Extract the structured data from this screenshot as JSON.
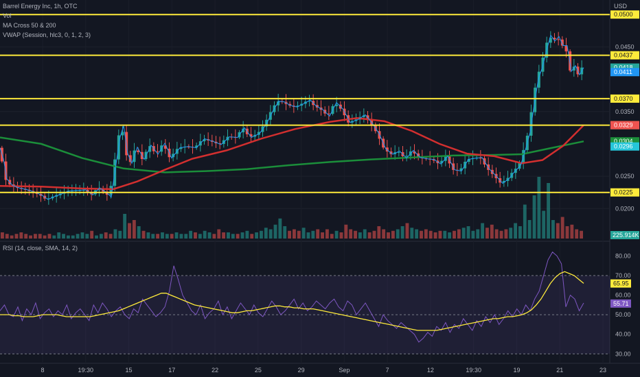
{
  "header": {
    "symbol_line": "Barrel Energy Inc, 1h, OTC",
    "vol_label": "Vol",
    "ma_label": "MA Cross 50 & 200",
    "vwap_label": "VWAP (Session, hlc3, 0, 1, 2, 3)",
    "currency": "USD"
  },
  "rsi_header": "RSI (14, close, SMA, 14, 2)",
  "colors": {
    "background": "#131722",
    "up": "#26a69a",
    "down": "#ef5350",
    "level_line": "#ffeb3b",
    "ma_fast": "#d32f2f",
    "ma_slow": "#1b8e3a",
    "vwap": "#2196f3",
    "rsi": "#7e57c2",
    "rsi_ma": "#ffeb3b"
  },
  "chart_data": [
    {
      "type": "candlestick",
      "title": "Barrel Energy Inc, 1h, OTC",
      "ylabel": "USD",
      "ylim": [
        0.0177,
        0.0514
      ],
      "y_ticks": [
        "0.0450",
        "0.0350",
        "0.0250",
        "0.0200"
      ],
      "x_ticks": [
        "8",
        "19:30",
        "15",
        "17",
        "22",
        "25",
        "29",
        "Sep",
        "7",
        "12",
        "19:30",
        "19",
        "21",
        "23"
      ],
      "horizontal_levels": [
        "0.0500",
        "0.0437",
        "0.0370",
        "0.0329",
        "0.0225"
      ],
      "price_labels": [
        {
          "text": "0.0418",
          "value": 0.0418,
          "color": "#26a69a"
        },
        {
          "text": "0.0411",
          "value": 0.0411,
          "color": "#2196f3"
        },
        {
          "text": "0.0329",
          "value": 0.0329,
          "color": "#ef5350"
        },
        {
          "text": "0.0304",
          "value": 0.0304,
          "color": "#1b8e3a"
        },
        {
          "text": "0.0296",
          "value": 0.0296,
          "color": "#26c6da"
        }
      ],
      "close_path": [
        [
          0,
          0.0294
        ],
        [
          5,
          0.0277
        ],
        [
          10,
          0.0246
        ],
        [
          18,
          0.0236
        ],
        [
          28,
          0.0232
        ],
        [
          40,
          0.0229
        ],
        [
          52,
          0.0225
        ],
        [
          62,
          0.022
        ],
        [
          70,
          0.0214
        ],
        [
          78,
          0.0218
        ],
        [
          88,
          0.0222
        ],
        [
          100,
          0.0227
        ],
        [
          112,
          0.0228
        ],
        [
          125,
          0.0229
        ],
        [
          135,
          0.0221
        ],
        [
          145,
          0.0232
        ],
        [
          155,
          0.0225
        ],
        [
          162,
          0.0218
        ],
        [
          168,
          0.0262
        ],
        [
          175,
          0.0311
        ],
        [
          180,
          0.0328
        ],
        [
          186,
          0.0285
        ],
        [
          192,
          0.027
        ],
        [
          200,
          0.0295
        ],
        [
          210,
          0.0276
        ],
        [
          220,
          0.0298
        ],
        [
          230,
          0.0284
        ],
        [
          240,
          0.0301
        ],
        [
          250,
          0.0278
        ],
        [
          262,
          0.0294
        ],
        [
          274,
          0.0296
        ],
        [
          286,
          0.0294
        ],
        [
          298,
          0.0308
        ],
        [
          310,
          0.0304
        ],
        [
          322,
          0.0299
        ],
        [
          334,
          0.0311
        ],
        [
          346,
          0.031
        ],
        [
          356,
          0.0325
        ],
        [
          366,
          0.031
        ],
        [
          378,
          0.0316
        ],
        [
          388,
          0.0331
        ],
        [
          398,
          0.0352
        ],
        [
          406,
          0.0366
        ],
        [
          414,
          0.0365
        ],
        [
          422,
          0.036
        ],
        [
          432,
          0.0357
        ],
        [
          442,
          0.0362
        ],
        [
          452,
          0.0368
        ],
        [
          460,
          0.0359
        ],
        [
          470,
          0.0353
        ],
        [
          480,
          0.0343
        ],
        [
          490,
          0.0364
        ],
        [
          500,
          0.0353
        ],
        [
          510,
          0.0333
        ],
        [
          522,
          0.0338
        ],
        [
          532,
          0.0345
        ],
        [
          542,
          0.0332
        ],
        [
          552,
          0.0316
        ],
        [
          562,
          0.0292
        ],
        [
          572,
          0.0284
        ],
        [
          582,
          0.0289
        ],
        [
          592,
          0.0278
        ],
        [
          602,
          0.029
        ],
        [
          612,
          0.0279
        ],
        [
          622,
          0.0277
        ],
        [
          632,
          0.0276
        ],
        [
          642,
          0.0269
        ],
        [
          652,
          0.0281
        ],
        [
          662,
          0.026
        ],
        [
          672,
          0.0258
        ],
        [
          682,
          0.0276
        ],
        [
          692,
          0.0278
        ],
        [
          702,
          0.0279
        ],
        [
          712,
          0.0262
        ],
        [
          722,
          0.0251
        ],
        [
          732,
          0.0239
        ],
        [
          742,
          0.0247
        ],
        [
          750,
          0.0258
        ],
        [
          758,
          0.0266
        ],
        [
          766,
          0.0294
        ],
        [
          772,
          0.0318
        ],
        [
          778,
          0.0361
        ],
        [
          784,
          0.04
        ],
        [
          790,
          0.0419
        ],
        [
          796,
          0.0445
        ],
        [
          802,
          0.0468
        ],
        [
          808,
          0.0459
        ],
        [
          814,
          0.0466
        ],
        [
          820,
          0.0452
        ],
        [
          826,
          0.0452
        ],
        [
          832,
          0.0412
        ],
        [
          838,
          0.0421
        ],
        [
          844,
          0.0407
        ],
        [
          850,
          0.0418
        ]
      ],
      "ma_fast_path": [
        [
          0,
          0.0235
        ],
        [
          60,
          0.0234
        ],
        [
          120,
          0.0231
        ],
        [
          165,
          0.023
        ],
        [
          200,
          0.0242
        ],
        [
          240,
          0.026
        ],
        [
          280,
          0.0277
        ],
        [
          330,
          0.029
        ],
        [
          380,
          0.0308
        ],
        [
          430,
          0.0323
        ],
        [
          480,
          0.0334
        ],
        [
          520,
          0.034
        ],
        [
          560,
          0.0335
        ],
        [
          600,
          0.032
        ],
        [
          640,
          0.03
        ],
        [
          680,
          0.0285
        ],
        [
          720,
          0.0281
        ],
        [
          760,
          0.027
        ],
        [
          790,
          0.0275
        ],
        [
          820,
          0.0297
        ],
        [
          850,
          0.0329
        ]
      ],
      "ma_slow_path": [
        [
          0,
          0.031
        ],
        [
          60,
          0.03
        ],
        [
          120,
          0.0278
        ],
        [
          180,
          0.0262
        ],
        [
          240,
          0.0256
        ],
        [
          300,
          0.0258
        ],
        [
          360,
          0.0261
        ],
        [
          420,
          0.0267
        ],
        [
          480,
          0.0272
        ],
        [
          540,
          0.0276
        ],
        [
          600,
          0.0279
        ],
        [
          660,
          0.0282
        ],
        [
          720,
          0.0283
        ],
        [
          760,
          0.0284
        ],
        [
          800,
          0.0293
        ],
        [
          850,
          0.0304
        ]
      ],
      "volume_peak": "225.914K",
      "volume_bars": [
        4,
        3,
        2,
        3,
        4,
        3,
        2,
        3,
        3,
        2,
        3,
        2,
        4,
        3,
        2,
        2,
        3,
        4,
        3,
        5,
        2,
        3,
        4,
        3,
        6,
        5,
        16,
        10,
        12,
        8,
        5,
        4,
        3,
        3,
        4,
        3,
        3,
        4,
        3,
        3,
        5,
        4,
        3,
        5,
        4,
        3,
        6,
        4,
        4,
        3,
        3,
        4,
        5,
        3,
        4,
        5,
        7,
        6,
        9,
        13,
        8,
        5,
        6,
        5,
        7,
        4,
        5,
        6,
        4,
        6,
        3,
        5,
        4,
        9,
        6,
        5,
        4,
        6,
        4,
        5,
        8,
        6,
        4,
        5,
        6,
        8,
        10,
        7,
        6,
        5,
        6,
        5,
        4,
        5,
        5,
        4,
        5,
        6,
        7,
        8,
        5,
        6,
        10,
        7,
        9,
        6,
        5,
        6,
        7,
        10,
        8,
        22,
        12,
        28,
        40,
        18,
        36,
        12,
        10,
        14,
        8,
        9,
        6,
        5
      ]
    },
    {
      "type": "line",
      "title": "RSI (14, close, SMA, 14, 2)",
      "ylim": [
        28,
        84
      ],
      "y_ticks": [
        "80.00",
        "70.00",
        "60.00",
        "50.00",
        "40.00",
        "30.00"
      ],
      "band_upper": 70,
      "band_middle": 50,
      "band_lower": 30,
      "value_labels": [
        {
          "text": "65.95",
          "value": 65.95,
          "color": "#ffeb3b"
        },
        {
          "text": "55.71",
          "value": 55.71,
          "color": "#7e57c2"
        }
      ],
      "rsi_values": [
        52,
        55,
        50,
        49,
        54,
        47,
        53,
        50,
        56,
        48,
        51,
        53,
        49,
        52,
        50,
        55,
        48,
        51,
        53,
        50,
        47,
        55,
        51,
        56,
        53,
        49,
        52,
        54,
        50,
        48,
        53,
        51,
        58,
        55,
        52,
        49,
        51,
        54,
        62,
        75,
        68,
        60,
        56,
        52,
        50,
        55,
        48,
        51,
        53,
        57,
        50,
        54,
        48,
        52,
        56,
        53,
        50,
        55,
        51,
        49,
        53,
        57,
        54,
        50,
        52,
        55,
        58,
        53,
        56,
        52,
        54,
        57,
        55,
        53,
        56,
        58,
        54,
        52,
        57,
        55,
        50,
        53,
        56,
        52,
        48,
        44,
        50,
        47,
        45,
        43,
        46,
        44,
        42,
        40,
        36,
        38,
        41,
        39,
        44,
        42,
        46,
        41,
        45,
        43,
        48,
        45,
        42,
        47,
        44,
        49,
        46,
        50,
        45,
        48,
        52,
        49,
        53,
        50,
        55,
        52,
        58,
        62,
        70,
        78,
        82,
        80,
        76,
        54,
        60,
        58,
        52,
        56
      ],
      "rsi_ma_values": [
        50,
        50,
        50,
        49.5,
        49.5,
        49,
        49,
        49,
        49.5,
        50,
        50,
        50,
        50,
        49.5,
        49,
        49,
        49,
        49,
        49,
        49,
        49.5,
        50,
        50.5,
        51,
        51.5,
        52,
        53,
        54,
        55,
        56,
        57,
        58,
        59,
        60,
        61,
        61,
        60,
        59,
        58,
        57,
        56,
        55,
        54.5,
        54,
        53.5,
        53,
        52.5,
        52,
        51.5,
        51,
        51,
        51.5,
        52,
        52,
        52.5,
        53,
        53.5,
        54,
        54.5,
        54.5,
        54,
        54,
        53.5,
        53.5,
        53,
        53,
        53,
        52.5,
        52,
        51.5,
        51,
        50.5,
        50,
        49.5,
        49,
        48.5,
        48,
        47.5,
        47,
        46.5,
        46,
        45.5,
        45,
        44.5,
        44,
        43.5,
        43,
        42.5,
        42,
        42,
        42,
        42,
        42,
        42.5,
        43,
        43.5,
        44,
        44.5,
        45,
        45.5,
        46,
        46.5,
        47,
        47.5,
        48,
        48,
        48.5,
        49,
        49,
        49.5,
        50,
        51,
        52.5,
        55,
        58,
        62,
        66,
        69,
        71,
        72,
        71,
        70,
        68,
        66
      ]
    }
  ]
}
